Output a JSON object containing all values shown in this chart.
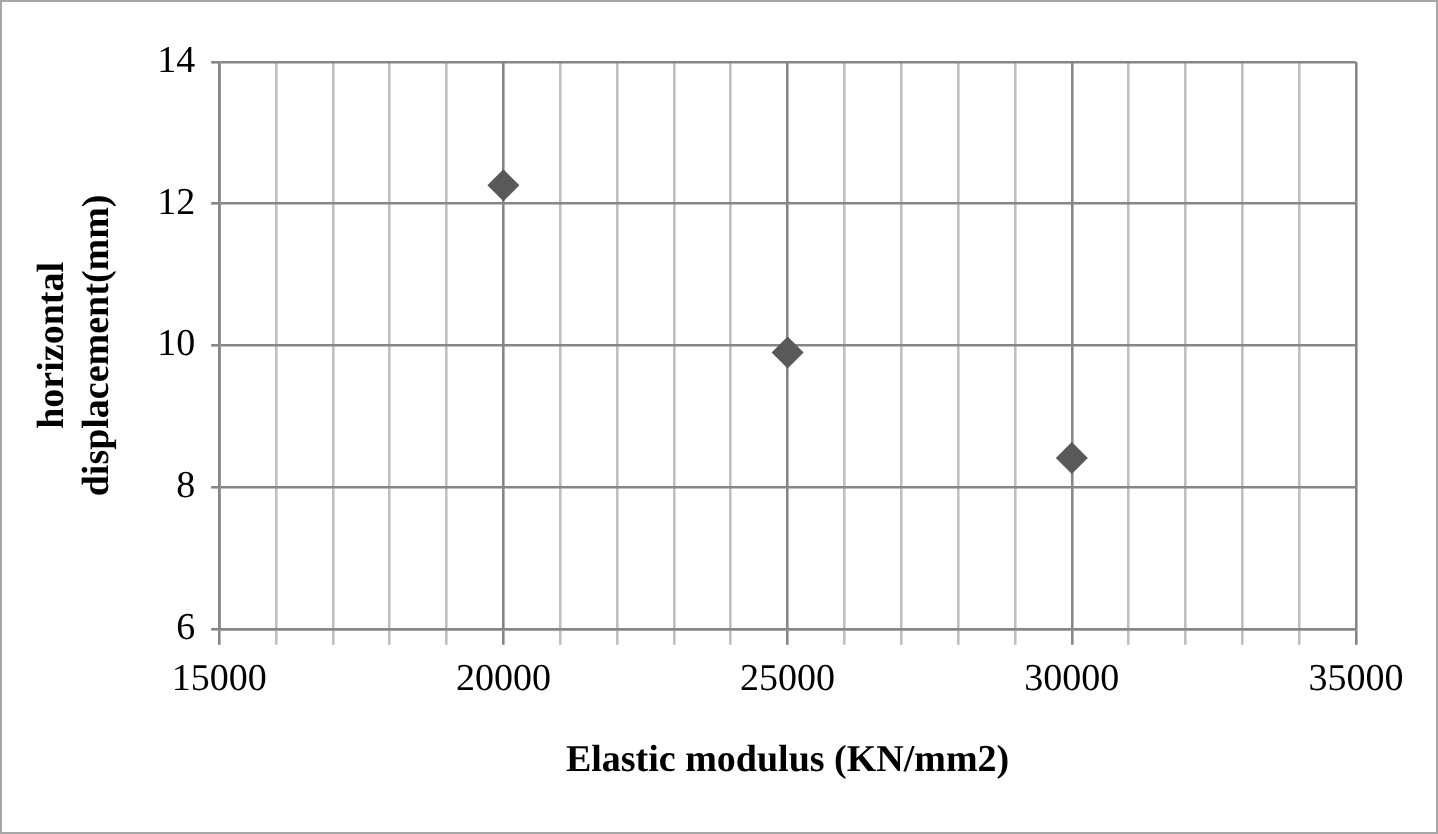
{
  "chart_data": {
    "type": "scatter",
    "xlabel": "Elastic modulus (KN/mm2)",
    "ylabel": "horizontal\ndisplacement(mm)",
    "x": [
      20000,
      25000,
      30000
    ],
    "series": [
      {
        "color": "#595959",
        "values": [
          12.26,
          9.9,
          8.41
        ]
      }
    ],
    "xlim": [
      15000,
      35000
    ],
    "xticks": [
      15000,
      {
        "value": 16000,
        "label": null
      },
      {
        "value": 17000,
        "label": null
      },
      {
        "value": 18000,
        "label": null
      },
      {
        "value": 19000,
        "label": null
      },
      20000,
      {
        "value": 21000,
        "label": null
      },
      {
        "value": 22000,
        "label": null
      },
      {
        "value": 23000,
        "label": null
      },
      {
        "value": 24000,
        "label": null
      },
      25000,
      {
        "value": 26000,
        "label": null
      },
      {
        "value": 27000,
        "label": null
      },
      {
        "value": 28000,
        "label": null
      },
      {
        "value": 29000,
        "label": null
      },
      30000,
      {
        "value": 31000,
        "label": null
      },
      {
        "value": 32000,
        "label": null
      },
      {
        "value": 33000,
        "label": null
      },
      {
        "value": 34000,
        "label": null
      },
      35000
    ],
    "ylim": [
      6,
      14
    ],
    "yticks": [
      6,
      8,
      10,
      12,
      14
    ],
    "grid": true,
    "legend": false,
    "marker": "diamond"
  }
}
